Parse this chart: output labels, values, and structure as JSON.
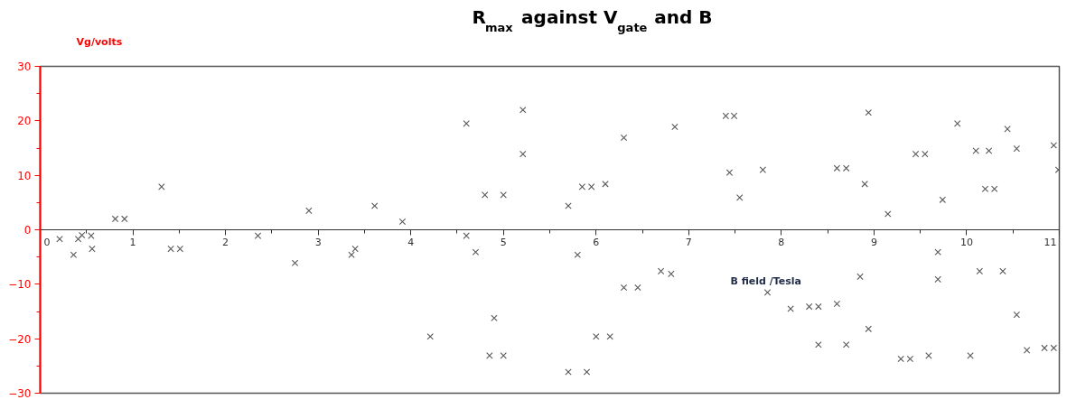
{
  "chart_data": {
    "type": "scatter",
    "title": "R$_{max}$ against V$_{gate}$ and B",
    "xlabel": "B field /Tesla",
    "ylabel": "Vg/volts",
    "marker": "cross",
    "grid": false,
    "xlim": [
      0,
      11
    ],
    "xticks": [
      0,
      1,
      2,
      3,
      4,
      5,
      6,
      7,
      8,
      9,
      10,
      11
    ],
    "ylim": [
      -30,
      30
    ],
    "yticks": [
      -30,
      -20,
      -10,
      0,
      10,
      20,
      30
    ],
    "series": [
      {
        "color": "#595959",
        "x": [
          0.21,
          0.36,
          0.41,
          0.45,
          0.55,
          0.56,
          0.81,
          0.91,
          1.31,
          1.41,
          1.51,
          2.35,
          2.75,
          2.9,
          3.36,
          3.4,
          3.61,
          3.91,
          4.21,
          4.6,
          4.6,
          4.7,
          4.8,
          4.85,
          4.9,
          5.0,
          5.0,
          5.21,
          5.21,
          5.7,
          5.7,
          5.8,
          5.85,
          5.9,
          5.95,
          6.0,
          6.1,
          6.15,
          6.3,
          6.3,
          6.45,
          6.7,
          6.81,
          6.85,
          7.4,
          7.49,
          7.44,
          7.55,
          7.8,
          7.85,
          8.1,
          8.3,
          8.4,
          8.4,
          8.6,
          8.6,
          8.7,
          8.7,
          8.85,
          8.9,
          8.94,
          8.94,
          9.15,
          9.29,
          9.39,
          9.45,
          9.55,
          9.59,
          9.69,
          9.69,
          9.74,
          9.9,
          10.04,
          10.1,
          10.14,
          10.2,
          10.24,
          10.3,
          10.39,
          10.44,
          10.54,
          10.54,
          10.65,
          10.84,
          10.94,
          10.94,
          10.99
        ],
        "values": [
          -1.7,
          -4.6,
          -1.7,
          -1.0,
          -1.1,
          -3.5,
          2.0,
          2.0,
          7.9,
          -3.5,
          -3.5,
          -1.1,
          -6.1,
          3.5,
          -4.6,
          -3.5,
          4.4,
          1.5,
          -19.6,
          19.5,
          -1.1,
          -4.1,
          6.4,
          -23.1,
          -16.2,
          6.4,
          -23.1,
          22.0,
          13.9,
          4.4,
          -26.1,
          -4.6,
          7.9,
          -26.1,
          7.9,
          -19.6,
          8.4,
          -19.6,
          16.9,
          -10.6,
          -10.6,
          -7.6,
          -8.1,
          18.9,
          20.9,
          20.9,
          10.5,
          5.9,
          11.0,
          -11.5,
          -14.5,
          -14.1,
          -14.1,
          -21.1,
          11.3,
          -13.6,
          11.3,
          -21.1,
          -8.6,
          8.4,
          21.5,
          -18.2,
          2.9,
          -23.7,
          -23.7,
          13.9,
          13.9,
          -23.1,
          -4.1,
          -9.1,
          5.5,
          19.5,
          -23.1,
          14.5,
          -7.6,
          7.5,
          14.5,
          7.5,
          -7.6,
          18.5,
          14.9,
          -15.6,
          -22.1,
          -21.7,
          -21.7,
          15.5,
          11.0
        ]
      }
    ]
  }
}
